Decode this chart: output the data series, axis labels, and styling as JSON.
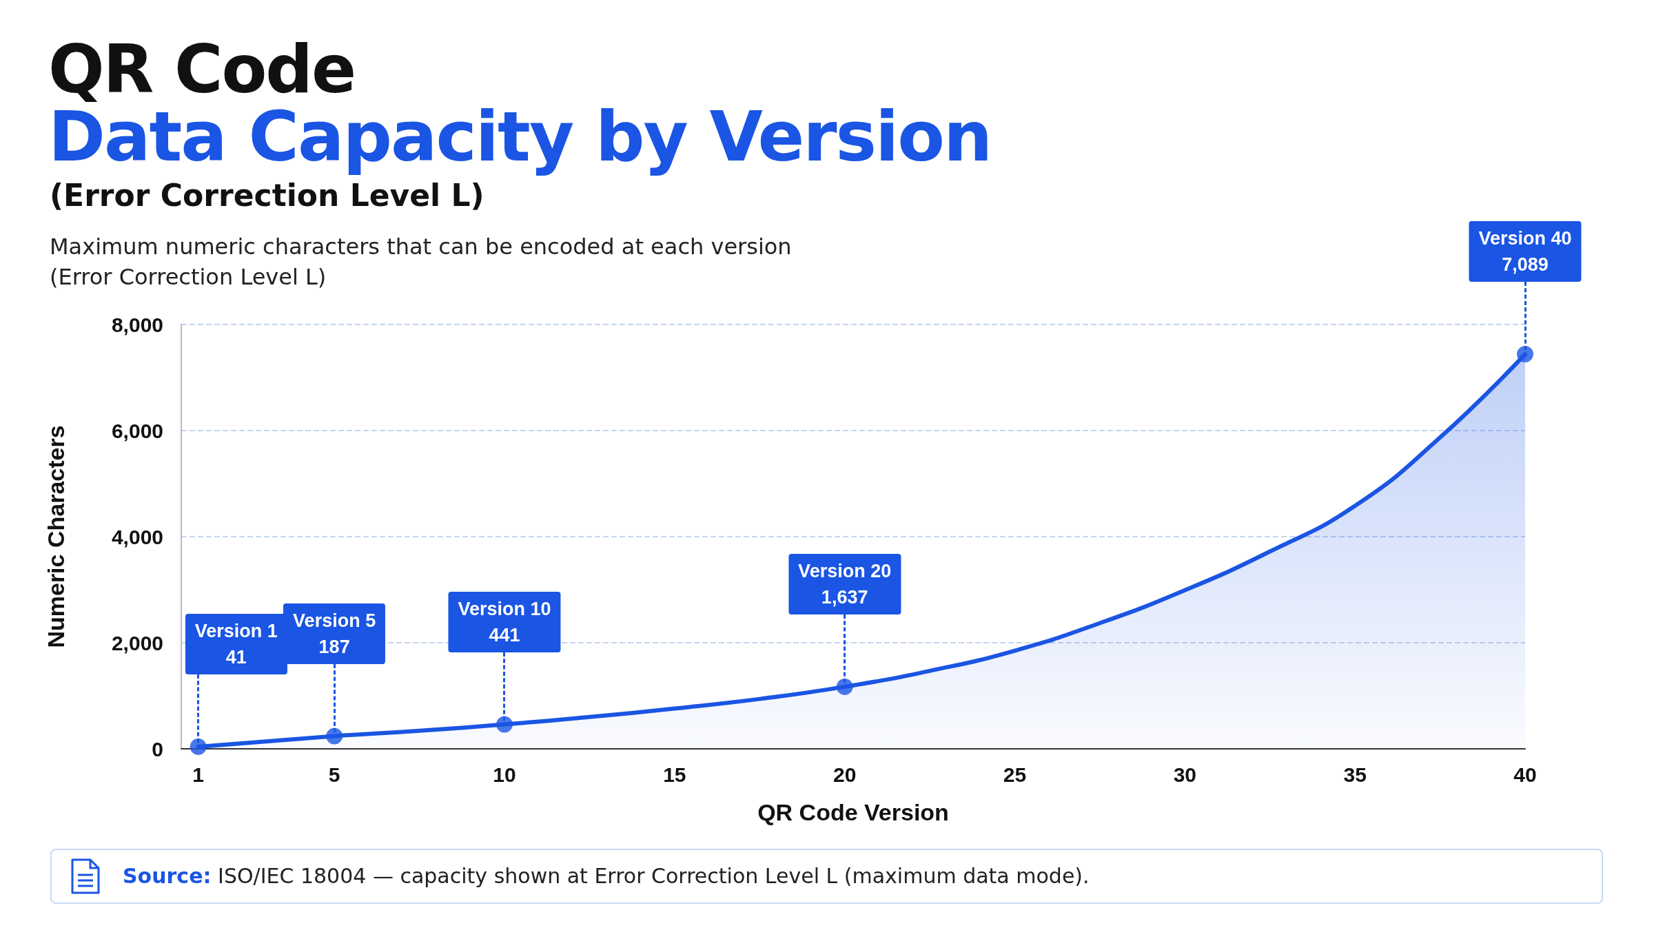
{
  "chart_data": {
    "type": "area",
    "title": "QR Code",
    "subtitle": "Data Capacity by Version",
    "xlabel": "QR Code Version",
    "ylabel": "Numeric Characters",
    "annotations": [
      "(Error Correction Level L)",
      "Maximum numeric characters that can be encoded at each version\n(Error Correction Level L)",
      "Source: ISO/IEC 18004 — capacity shown at Error Correction Level L (maximum data mode).",
      {
        "text": "Version 1\n41",
        "x": 1,
        "y": 40
      },
      {
        "text": "Version 5\n187",
        "x": 5,
        "y": 240
      },
      {
        "text": "Version 10\n441",
        "x": 10,
        "y": 460
      },
      {
        "text": "Version 20\n1,637",
        "x": 20,
        "y": 1170
      },
      {
        "text": "Version 40\n7,089",
        "x": 40,
        "y": 7440
      }
    ],
    "series": [
      {
        "color": "#1a55e3",
        "marker": "none",
        "x": [
          1,
          5,
          7.5,
          10,
          12.5,
          15,
          17.5,
          20,
          22.5,
          25,
          27.5,
          30,
          32.5,
          35,
          37.5,
          40
        ],
        "values": [
          40,
          240,
          340,
          460,
          600,
          760,
          940,
          1170,
          1470,
          1850,
          2370,
          2990,
          3720,
          4580,
          5870,
          7440
        ]
      },
      {
        "type": "scatter",
        "marker": "circle",
        "color": "#1a55e3",
        "x": [
          1,
          5,
          10,
          20,
          40
        ],
        "values": [
          40,
          240,
          460,
          1170,
          7440
        ]
      }
    ],
    "xlim": [
      0.5,
      40
    ],
    "xticks": [
      1,
      5,
      10,
      15,
      20,
      25,
      30,
      35,
      40
    ],
    "ylim": [
      0,
      8000
    ],
    "yticks": [
      0,
      {
        "value": 2000,
        "label": "2,000"
      },
      {
        "value": 4000,
        "label": "4,000"
      },
      {
        "value": 6000,
        "label": "6,000"
      },
      {
        "value": 8000,
        "label": "8,000"
      }
    ],
    "grid": "y",
    "line_style": "solid"
  }
}
